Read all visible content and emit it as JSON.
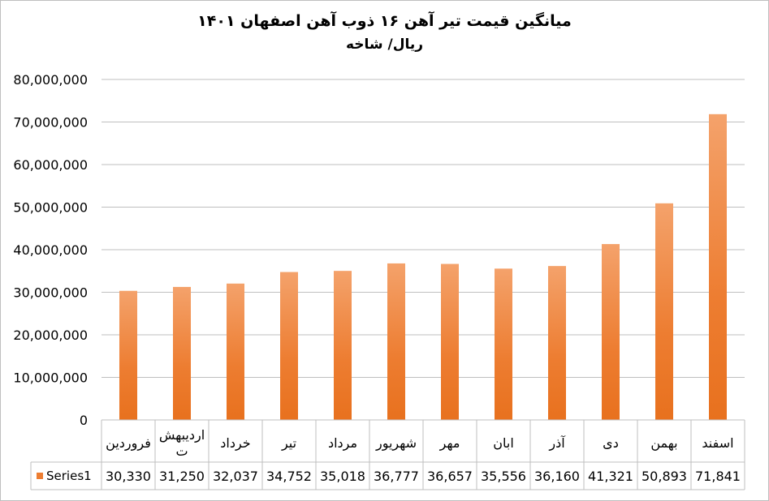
{
  "chart_data": {
    "type": "bar",
    "title": "میانگین قیمت تیر آهن ۱۶ ذوب آهن اصفهان ۱۴۰۱",
    "subtitle": "ریال/ شاخه",
    "categories": [
      "فروردین",
      "اردیبهشت",
      "خرداد",
      "تیر",
      "مرداد",
      "شهریور",
      "مهر",
      "ابان",
      "آذر",
      "دی",
      "بهمن",
      "اسفند"
    ],
    "series": [
      {
        "name": "Series1",
        "values": [
          30330000,
          31250000,
          32037000,
          34752000,
          35018000,
          36777000,
          36657000,
          35556000,
          36160000,
          41321000,
          50893000,
          71841000
        ],
        "table_values": [
          "30,330",
          "31,250",
          "32,037",
          "34,752",
          "35,018",
          "36,777",
          "36,657",
          "35,556",
          "36,160",
          "41,321",
          "50,893",
          "71,841"
        ],
        "color": "#ed7d31"
      }
    ],
    "y_ticks": [
      "0",
      "10,000,000",
      "20,000,000",
      "30,000,000",
      "40,000,000",
      "50,000,000",
      "60,000,000",
      "70,000,000",
      "80,000,000"
    ],
    "ylim": [
      0,
      80000000
    ],
    "grid": true,
    "legend": "data-table",
    "bar_gradient": [
      "#f4a26b",
      "#ed7d31",
      "#e8711e"
    ]
  }
}
